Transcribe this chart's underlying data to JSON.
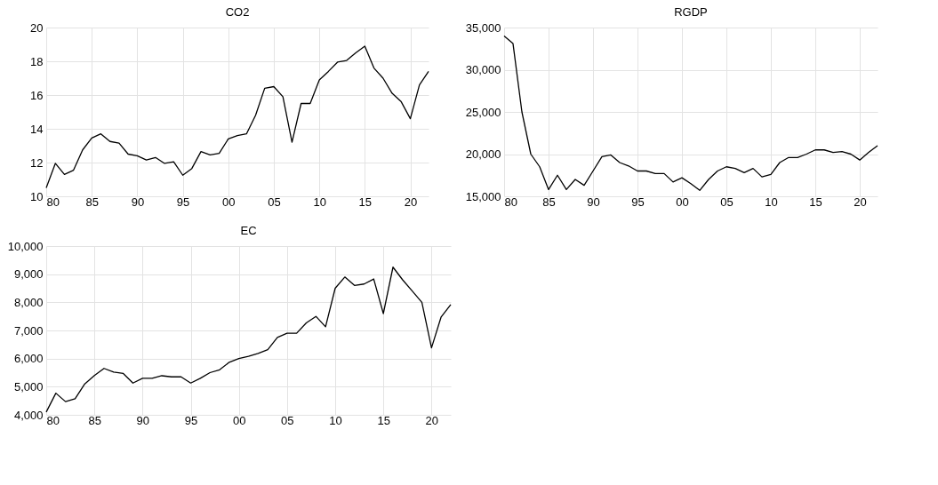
{
  "chart_data": [
    {
      "type": "line",
      "title": "CO2",
      "x": [
        1980,
        1981,
        1982,
        1983,
        1984,
        1985,
        1986,
        1987,
        1988,
        1989,
        1990,
        1991,
        1992,
        1993,
        1994,
        1995,
        1996,
        1997,
        1998,
        1999,
        2000,
        2001,
        2002,
        2003,
        2004,
        2005,
        2006,
        2007,
        2008,
        2009,
        2010,
        2011,
        2012,
        2013,
        2014,
        2015,
        2016,
        2017,
        2018,
        2019,
        2020,
        2021,
        2022
      ],
      "series": [
        {
          "color": "#000000",
          "values": [
            10.5,
            11.95,
            11.3,
            11.55,
            12.75,
            13.45,
            13.7,
            13.25,
            13.15,
            12.5,
            12.4,
            12.15,
            12.3,
            11.95,
            12.05,
            11.25,
            11.65,
            12.65,
            12.45,
            12.55,
            13.4,
            13.6,
            13.7,
            14.8,
            16.4,
            16.5,
            15.9,
            13.2,
            15.5,
            15.5,
            16.9,
            17.4,
            17.95,
            18.05,
            18.5,
            18.9,
            17.6,
            17.0,
            16.1,
            15.6,
            14.6,
            16.6,
            17.4
          ]
        }
      ],
      "xlim": [
        1980,
        2022
      ],
      "xticks": [
        {
          "value": 1980,
          "label": "80"
        },
        {
          "value": 1985,
          "label": "85"
        },
        {
          "value": 1990,
          "label": "90"
        },
        {
          "value": 1995,
          "label": "95"
        },
        {
          "value": 2000,
          "label": "00"
        },
        {
          "value": 2005,
          "label": "05"
        },
        {
          "value": 2010,
          "label": "10"
        },
        {
          "value": 2015,
          "label": "15"
        },
        {
          "value": 2020,
          "label": "20"
        }
      ],
      "ylim": [
        10,
        20
      ],
      "yticks": [
        10,
        12,
        14,
        16,
        18,
        20
      ],
      "grid": true
    },
    {
      "type": "line",
      "title": "RGDP",
      "x": [
        1980,
        1981,
        1982,
        1983,
        1984,
        1985,
        1986,
        1987,
        1988,
        1989,
        1990,
        1991,
        1992,
        1993,
        1994,
        1995,
        1996,
        1997,
        1998,
        1999,
        2000,
        2001,
        2002,
        2003,
        2004,
        2005,
        2006,
        2007,
        2008,
        2009,
        2010,
        2011,
        2012,
        2013,
        2014,
        2015,
        2016,
        2017,
        2018,
        2019,
        2020,
        2021,
        2022
      ],
      "series": [
        {
          "color": "#000000",
          "values": [
            34000,
            33100,
            25000,
            20000,
            18500,
            15800,
            17500,
            15800,
            17000,
            16300,
            18000,
            19700,
            19900,
            19000,
            18600,
            18000,
            18000,
            17700,
            17700,
            16700,
            17200,
            16500,
            15700,
            17000,
            18000,
            18500,
            18300,
            17800,
            18300,
            17300,
            17600,
            19000,
            19600,
            19600,
            20000,
            20500,
            20500,
            20200,
            20300,
            20000,
            19300,
            20200,
            21000
          ]
        }
      ],
      "xlim": [
        1980,
        2022
      ],
      "xticks": [
        {
          "value": 1980,
          "label": "80"
        },
        {
          "value": 1985,
          "label": "85"
        },
        {
          "value": 1990,
          "label": "90"
        },
        {
          "value": 1995,
          "label": "95"
        },
        {
          "value": 2000,
          "label": "00"
        },
        {
          "value": 2005,
          "label": "05"
        },
        {
          "value": 2010,
          "label": "10"
        },
        {
          "value": 2015,
          "label": "15"
        },
        {
          "value": 2020,
          "label": "20"
        }
      ],
      "ylim": [
        15000,
        35000
      ],
      "yticks": [
        {
          "value": 15000,
          "label": "15,000"
        },
        {
          "value": 20000,
          "label": "20,000"
        },
        {
          "value": 25000,
          "label": "25,000"
        },
        {
          "value": 30000,
          "label": "30,000"
        },
        {
          "value": 35000,
          "label": "35,000"
        }
      ],
      "grid": true
    },
    {
      "type": "line",
      "title": "EC",
      "x": [
        1980,
        1981,
        1982,
        1983,
        1984,
        1985,
        1986,
        1987,
        1988,
        1989,
        1990,
        1991,
        1992,
        1993,
        1994,
        1995,
        1996,
        1997,
        1998,
        1999,
        2000,
        2001,
        2002,
        2003,
        2004,
        2005,
        2006,
        2007,
        2008,
        2009,
        2010,
        2011,
        2012,
        2013,
        2014,
        2015,
        2016,
        2017,
        2018,
        2019,
        2020,
        2021,
        2022
      ],
      "series": [
        {
          "color": "#000000",
          "values": [
            4100,
            4770,
            4470,
            4570,
            5100,
            5400,
            5650,
            5520,
            5470,
            5130,
            5300,
            5300,
            5390,
            5350,
            5350,
            5130,
            5300,
            5500,
            5600,
            5870,
            6000,
            6080,
            6180,
            6320,
            6750,
            6900,
            6900,
            7270,
            7500,
            7130,
            8500,
            8900,
            8600,
            8650,
            8830,
            7600,
            9250,
            8800,
            8400,
            8000,
            6380,
            7480,
            7920
          ]
        }
      ],
      "xlim": [
        1980,
        2022
      ],
      "xticks": [
        {
          "value": 1980,
          "label": "80"
        },
        {
          "value": 1985,
          "label": "85"
        },
        {
          "value": 1990,
          "label": "90"
        },
        {
          "value": 1995,
          "label": "95"
        },
        {
          "value": 2000,
          "label": "00"
        },
        {
          "value": 2005,
          "label": "05"
        },
        {
          "value": 2010,
          "label": "10"
        },
        {
          "value": 2015,
          "label": "15"
        },
        {
          "value": 2020,
          "label": "20"
        }
      ],
      "ylim": [
        4000,
        10000
      ],
      "yticks": [
        {
          "value": 4000,
          "label": "4,000"
        },
        {
          "value": 5000,
          "label": "5,000"
        },
        {
          "value": 6000,
          "label": "6,000"
        },
        {
          "value": 7000,
          "label": "7,000"
        },
        {
          "value": 8000,
          "label": "8,000"
        },
        {
          "value": 9000,
          "label": "9,000"
        },
        {
          "value": 10000,
          "label": "10,000"
        }
      ],
      "grid": true
    }
  ]
}
